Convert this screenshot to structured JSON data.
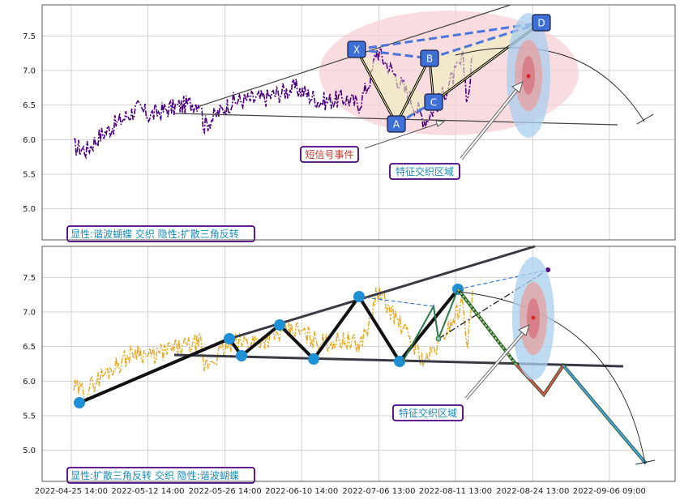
{
  "chart_data": [
    {
      "type": "line",
      "panel": "top",
      "y_ticks": [
        "5.0",
        "5.5",
        "6.0",
        "6.5",
        "7.0",
        "7.5"
      ],
      "ylim": [
        4.55,
        7.95
      ],
      "grid": true,
      "pattern_points": {
        "X": {
          "x": 0.528,
          "y": 7.3
        },
        "A": {
          "x": 0.605,
          "y": 6.27
        },
        "B": {
          "x": 0.665,
          "y": 7.15
        },
        "C": {
          "x": 0.672,
          "y": 6.55
        },
        "D": {
          "x": 0.835,
          "y": 7.6
        }
      },
      "point_labels": [
        "X",
        "A",
        "B",
        "C",
        "D"
      ],
      "price_color": "#4b0082",
      "annotations": {
        "signal_event": "短信号事件",
        "feature_zone": "特征交织区域"
      },
      "caption": "显性:谐波蝴蝶 交织 隐性:扩散三角反转"
    },
    {
      "type": "line",
      "panel": "bottom",
      "y_ticks": [
        "5.0",
        "5.5",
        "6.0",
        "6.5",
        "7.0",
        "7.5"
      ],
      "ylim": [
        4.55,
        7.95
      ],
      "grid": true,
      "price_color": "#e8a820",
      "zigzag": [
        {
          "x": 0.06,
          "y": 5.7
        },
        {
          "x": 0.345,
          "y": 6.6
        },
        {
          "x": 0.365,
          "y": 6.35
        },
        {
          "x": 0.43,
          "y": 6.8
        },
        {
          "x": 0.485,
          "y": 6.32
        },
        {
          "x": 0.56,
          "y": 7.2
        },
        {
          "x": 0.63,
          "y": 6.28
        },
        {
          "x": 0.715,
          "y": 7.32
        }
      ],
      "annotations": {
        "feature_zone": "特征交织区域"
      },
      "caption": "显性:扩散三角反转 交织 隐性:谐波蝴蝶"
    }
  ],
  "x_ticks": [
    "2022-04-25 14:00",
    "2022-05-12 14:00",
    "2022-05-26 14:00",
    "2022-06-10 14:00",
    "2022-07-06 13:00",
    "2022-08-11 13:00",
    "2022-08-24 13:00",
    "2022-09-06 09:00"
  ]
}
